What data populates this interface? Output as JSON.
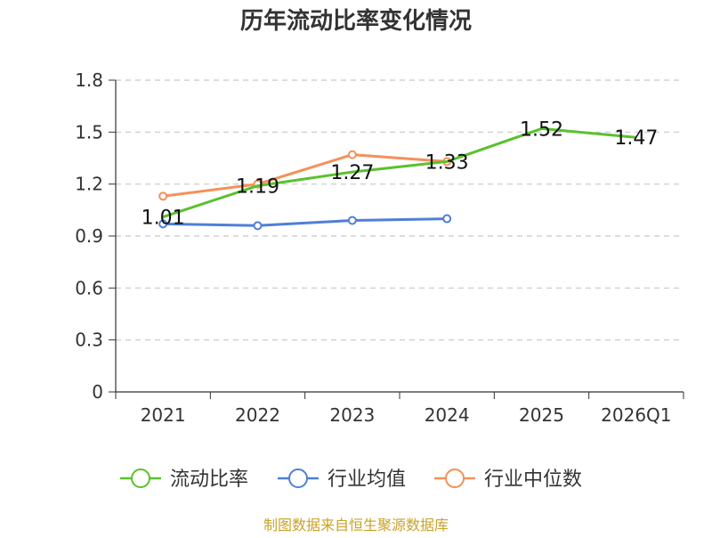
{
  "chart_data": {
    "type": "line",
    "title": "历年流动比率变化情况",
    "categories": [
      "2021",
      "2022",
      "2023",
      "2024",
      "2025",
      "2026Q1"
    ],
    "ylim": [
      0,
      1.8
    ],
    "yticks": [
      "0",
      "0.3",
      "0.6",
      "0.9",
      "1.2",
      "1.5",
      "1.8"
    ],
    "grid": true,
    "legend_position": "bottom",
    "series": [
      {
        "name": "流动比率",
        "color": "#5ac12e",
        "values": [
          1.01,
          1.19,
          1.27,
          1.33,
          1.52,
          1.47
        ],
        "labels": [
          "1.01",
          "1.19",
          "1.27",
          "1.33",
          "1.52",
          "1.47"
        ],
        "show_points": false
      },
      {
        "name": "行业均值",
        "color": "#4f7fd6",
        "values": [
          0.97,
          0.96,
          0.99,
          1.0,
          null,
          null
        ],
        "show_points": true
      },
      {
        "name": "行业中位数",
        "color": "#f5905a",
        "values": [
          1.13,
          1.2,
          1.37,
          1.33,
          null,
          null
        ],
        "show_points": true
      }
    ],
    "source": "制图数据来自恒生聚源数据库",
    "source_color": "#c9a227"
  }
}
